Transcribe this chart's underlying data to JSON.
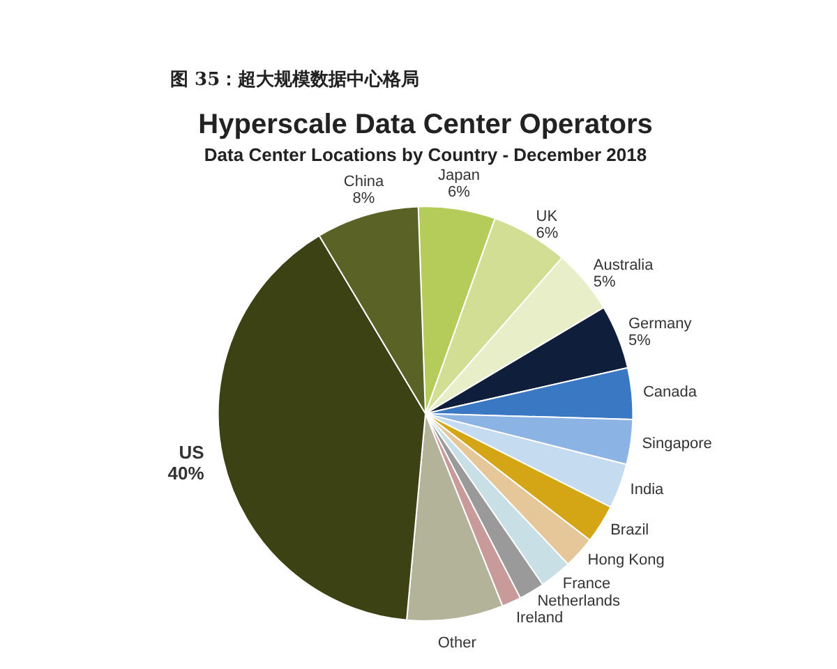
{
  "chart_data": {
    "type": "pie",
    "title": "Hyperscale Data Center Operators",
    "subtitle": "Data Center Locations by Country - December 2018",
    "annotations": [
      "图 35：超大规模数据中心格局"
    ],
    "categories": [
      "Japan",
      "UK",
      "Australia",
      "Germany",
      "Canada",
      "Singapore",
      "India",
      "Brazil",
      "Hong Kong",
      "France",
      "Netherlands",
      "Ireland",
      "Other",
      "US",
      "China"
    ],
    "values": [
      6,
      6,
      5,
      5,
      4,
      3.5,
      3.5,
      3,
      2.5,
      2.5,
      2,
      1.5,
      7.5,
      40,
      8
    ],
    "value_labels": [
      "6%",
      "6%",
      "5%",
      "5%",
      null,
      null,
      null,
      null,
      null,
      null,
      null,
      null,
      null,
      "40%",
      "8%"
    ],
    "colors": [
      "#b5cc5a",
      "#d3de95",
      "#e8efc8",
      "#0f1e3a",
      "#3a78c4",
      "#8bb3e3",
      "#c5dbef",
      "#d4a514",
      "#e6c79a",
      "#c8dfe6",
      "#9a9a9a",
      "#c99a9a",
      "#b3b39a",
      "#3d4214",
      "#5a6325"
    ],
    "legend": false
  }
}
